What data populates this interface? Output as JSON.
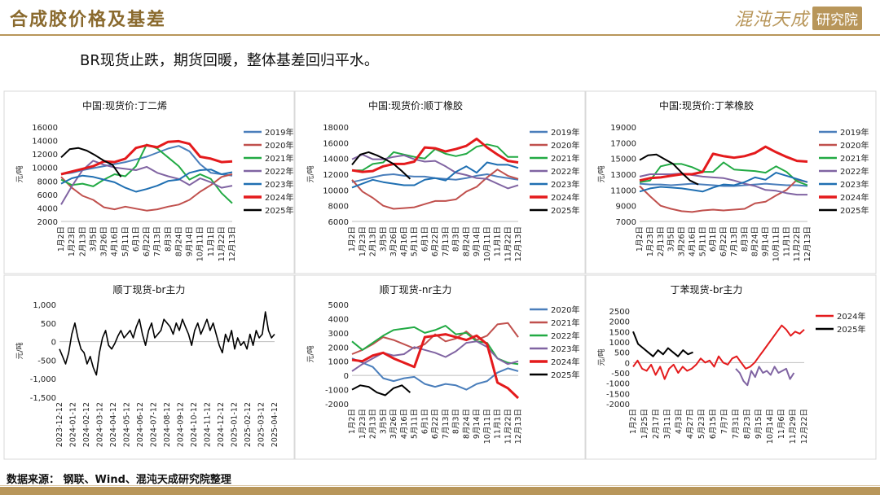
{
  "header": {
    "title": "合成胶价格及基差"
  },
  "logo": {
    "text": "混沌天成",
    "box": "研究院"
  },
  "subtitle": "BR现货止跌，期货回暖，整体基差回归平水。",
  "footer": {
    "source": "数据来源： 钢联、Wind、混沌天成研究院整理"
  },
  "colors": {
    "y2019": "#4a7ebb",
    "y2020": "#c0504d",
    "y2021": "#22aa44",
    "y2022": "#8064a2",
    "y2023": "#1f6fb2",
    "y2024": "#e41a1c",
    "y2025": "#000000",
    "accent": "#b8965a"
  },
  "chart_data": [
    {
      "type": "line",
      "title": "中国:现货价:丁二烯",
      "ylabel": "元/吨",
      "ylim": [
        2000,
        16000
      ],
      "yticks": [
        "16000",
        "14000",
        "12000",
        "10000",
        "8000",
        "6000",
        "4000",
        "2000"
      ],
      "xticks": [
        "1月2日",
        "1月23日",
        "2月13日",
        "3月5日",
        "3月26日",
        "4月16日",
        "5月11日",
        "6月1日",
        "6月22日",
        "7月13日",
        "8月3日",
        "8月24日",
        "9月14日",
        "10月11日",
        "11月1日",
        "11月22日",
        "12月13日"
      ],
      "series": [
        {
          "name": "2019年",
          "color": "#4a7ebb",
          "width": 2,
          "values": [
            9000,
            9200,
            9600,
            9900,
            10200,
            10500,
            10800,
            11200,
            11600,
            12200,
            12800,
            13200,
            12400,
            10500,
            9200,
            9000,
            8800
          ]
        },
        {
          "name": "2020年",
          "color": "#c0504d",
          "width": 2,
          "values": [
            8600,
            7000,
            5800,
            5200,
            4100,
            3800,
            4200,
            3900,
            3600,
            3800,
            4200,
            4500,
            5200,
            6400,
            7400,
            8600,
            9000
          ]
        },
        {
          "name": "2021年",
          "color": "#22aa44",
          "width": 2,
          "values": [
            8200,
            7400,
            7600,
            7200,
            8200,
            9000,
            8700,
            10200,
            13400,
            12800,
            11500,
            10200,
            8200,
            9000,
            8300,
            6200,
            4700
          ]
        },
        {
          "name": "2022年",
          "color": "#8064a2",
          "width": 2,
          "values": [
            4500,
            7200,
            9600,
            11000,
            10400,
            10000,
            9800,
            9600,
            10100,
            9200,
            8700,
            8300,
            7400,
            8400,
            7800,
            7000,
            7300
          ]
        },
        {
          "name": "2023年",
          "color": "#1f6fb2",
          "width": 2,
          "values": [
            7600,
            8400,
            8800,
            8600,
            8200,
            7800,
            7000,
            6400,
            6800,
            7300,
            8000,
            8200,
            9200,
            9600,
            9700,
            9000,
            9300
          ]
        },
        {
          "name": "2024年",
          "color": "#e41a1c",
          "width": 3,
          "values": [
            9000,
            9400,
            9800,
            10200,
            10900,
            10800,
            11300,
            12900,
            13300,
            13000,
            13800,
            13900,
            13500,
            11600,
            11300,
            10800,
            10900
          ]
        },
        {
          "name": "2025年",
          "color": "#000000",
          "width": 2,
          "values": [
            11500,
            12700,
            12900,
            12500,
            11800,
            11000,
            10400,
            8600
          ]
        }
      ]
    },
    {
      "type": "line",
      "title": "中国:现货价:顺丁橡胶",
      "ylabel": "元/吨",
      "ylim": [
        6000,
        18000
      ],
      "yticks": [
        "18000",
        "16000",
        "14000",
        "12000",
        "10000",
        "8000",
        "6000"
      ],
      "xticks": [
        "1月2日",
        "1月23日",
        "2月13日",
        "3月5日",
        "3月26日",
        "4月16日",
        "5月11日",
        "6月1日",
        "6月22日",
        "7月13日",
        "8月3日",
        "8月24日",
        "9月14日",
        "10月11日",
        "11月1日",
        "11月22日",
        "12月13日"
      ],
      "series": [
        {
          "name": "2019年",
          "color": "#4a7ebb",
          "width": 2,
          "values": [
            11000,
            11300,
            11600,
            11900,
            12000,
            11800,
            11700,
            11700,
            11500,
            11400,
            11300,
            11500,
            11800,
            12000,
            11700,
            11500,
            11300
          ]
        },
        {
          "name": "2020年",
          "color": "#c0504d",
          "width": 2,
          "values": [
            11300,
            9800,
            9000,
            8000,
            7600,
            7700,
            7800,
            8200,
            8600,
            8600,
            8800,
            9800,
            10400,
            11600,
            12600,
            11800,
            11400
          ]
        },
        {
          "name": "2021年",
          "color": "#22aa44",
          "width": 2,
          "values": [
            12500,
            12500,
            13300,
            13500,
            14800,
            14500,
            14200,
            14000,
            15200,
            14600,
            14300,
            14600,
            15500,
            15800,
            15500,
            14200,
            14200
          ]
        },
        {
          "name": "2022年",
          "color": "#8064a2",
          "width": 2,
          "values": [
            13900,
            14500,
            13900,
            13900,
            14200,
            14400,
            13900,
            13600,
            13700,
            13000,
            12200,
            11900,
            11500,
            11400,
            10800,
            10200,
            10600
          ]
        },
        {
          "name": "2023年",
          "color": "#1f6fb2",
          "width": 2,
          "values": [
            10300,
            10800,
            11300,
            11000,
            10800,
            10600,
            10600,
            11300,
            11500,
            11200,
            12300,
            13000,
            12200,
            13500,
            13200,
            13200,
            12800
          ]
        },
        {
          "name": "2024年",
          "color": "#e41a1c",
          "width": 3,
          "values": [
            12500,
            12300,
            12400,
            13000,
            13300,
            13300,
            13600,
            15400,
            15300,
            14900,
            15200,
            15600,
            16500,
            15400,
            14500,
            13700,
            13500
          ]
        },
        {
          "name": "2025年",
          "color": "#000000",
          "width": 2,
          "values": [
            13200,
            14500,
            14800,
            14400,
            13900,
            13300,
            12400,
            11400
          ]
        }
      ]
    },
    {
      "type": "line",
      "title": "中国:现货价:丁苯橡胶",
      "ylabel": "元/吨",
      "ylim": [
        7000,
        19000
      ],
      "yticks": [
        "19000",
        "17000",
        "15000",
        "13000",
        "11000",
        "9000",
        "7000"
      ],
      "xticks": [
        "1月2日",
        "1月23日",
        "2月13日",
        "3月5日",
        "3月26日",
        "4月16日",
        "5月11日",
        "6月1日",
        "6月22日",
        "7月13日",
        "8月3日",
        "8月24日",
        "9月14日",
        "10月11日",
        "11月1日",
        "11月22日",
        "12月13日"
      ],
      "series": [
        {
          "name": "2019年",
          "color": "#4a7ebb",
          "width": 2,
          "values": [
            11800,
            11700,
            11700,
            11600,
            11700,
            11800,
            11700,
            11600,
            11500,
            11500,
            11600,
            11700,
            11800,
            11700,
            11600,
            11600,
            11500
          ]
        },
        {
          "name": "2020年",
          "color": "#c0504d",
          "width": 2,
          "values": [
            11500,
            10200,
            9000,
            8600,
            8300,
            8200,
            8400,
            8500,
            8400,
            8500,
            8600,
            9300,
            9500,
            10300,
            11000,
            12300,
            12000
          ]
        },
        {
          "name": "2021年",
          "color": "#22aa44",
          "width": 2,
          "values": [
            12000,
            12200,
            14000,
            14300,
            14300,
            13900,
            13300,
            13300,
            14500,
            13600,
            13500,
            13400,
            13200,
            14000,
            13300,
            12100,
            11600
          ]
        },
        {
          "name": "2022年",
          "color": "#8064a2",
          "width": 2,
          "values": [
            12700,
            13000,
            13000,
            13000,
            13100,
            12900,
            12700,
            12600,
            12500,
            12200,
            11800,
            11500,
            11000,
            10900,
            10600,
            10400,
            10400
          ]
        },
        {
          "name": "2023年",
          "color": "#1f6fb2",
          "width": 2,
          "values": [
            10800,
            11200,
            11400,
            11300,
            11200,
            11000,
            10800,
            11300,
            11700,
            11600,
            12000,
            12600,
            12300,
            13200,
            12800,
            12400,
            12000
          ]
        },
        {
          "name": "2024年",
          "color": "#e41a1c",
          "width": 3,
          "values": [
            12200,
            12500,
            12600,
            12800,
            13000,
            13000,
            13300,
            15600,
            15300,
            15100,
            15300,
            15700,
            16500,
            15800,
            15200,
            14700,
            14600
          ]
        },
        {
          "name": "2025年",
          "color": "#000000",
          "width": 2,
          "values": [
            14800,
            15400,
            15500,
            14900,
            14300,
            13200,
            12200,
            11700
          ]
        }
      ]
    },
    {
      "type": "line",
      "title": "顺丁现货-br主力",
      "ylabel": "元/吨",
      "ylim": [
        -1500,
        1000
      ],
      "yticks": [
        "1,000",
        "500",
        "0",
        "-500",
        "-1,000",
        "-1,500"
      ],
      "xticks": [
        "2023-12-12",
        "2024-01-12",
        "2024-02-12",
        "2024-03-12",
        "2024-04-12",
        "2024-05-12",
        "2024-06-12",
        "2024-07-12",
        "2024-08-12",
        "2024-09-12",
        "2024-10-12",
        "2024-11-12",
        "2024-12-12",
        "2025-01-12",
        "2025-02-12",
        "2025-03-12",
        "2025-04-12"
      ],
      "series": [
        {
          "name": "",
          "color": "#000000",
          "width": 1.6,
          "values": [
            -200,
            -400,
            -600,
            -300,
            200,
            500,
            100,
            -200,
            -300,
            -600,
            -400,
            -700,
            -900,
            -300,
            100,
            300,
            -100,
            -200,
            -50,
            150,
            300,
            100,
            200,
            300,
            100,
            400,
            600,
            200,
            -100,
            300,
            500,
            100,
            200,
            300,
            600,
            500,
            400,
            200,
            500,
            300,
            600,
            400,
            200,
            -100,
            300,
            500,
            200,
            400,
            600,
            300,
            500,
            200,
            -100,
            -300,
            200,
            0,
            300,
            -200,
            100,
            -100,
            0,
            -200,
            200,
            -100,
            300,
            100,
            200,
            800,
            300,
            100,
            200
          ]
        }
      ]
    },
    {
      "type": "line",
      "title": "顺丁现货-nr主力",
      "ylabel": "元/吨",
      "ylim": [
        -2000,
        5000
      ],
      "yticks": [
        "5000",
        "4000",
        "3000",
        "2000",
        "1000",
        "0",
        "-1000",
        "-2000"
      ],
      "xticks": [
        "1月2日",
        "1月23日",
        "2月13日",
        "3月5日",
        "3月26日",
        "4月16日",
        "5月11日",
        "6月1日",
        "6月22日",
        "7月13日",
        "8月3日",
        "8月24日",
        "9月14日",
        "10月11日",
        "11月1日",
        "11月22日",
        "12月13日"
      ],
      "series": [
        {
          "name": "2020年",
          "color": "#4a7ebb",
          "width": 2,
          "values": [
            1200,
            900,
            600,
            -200,
            -400,
            -200,
            -100,
            -600,
            -800,
            -600,
            -700,
            -1000,
            -600,
            -400,
            200,
            500,
            300
          ]
        },
        {
          "name": "2021年",
          "color": "#c0504d",
          "width": 2,
          "values": [
            1500,
            1800,
            2200,
            2700,
            2500,
            2200,
            1900,
            2200,
            2900,
            2400,
            2600,
            3100,
            2500,
            2800,
            3600,
            3700,
            2700
          ]
        },
        {
          "name": "2022年",
          "color": "#22aa44",
          "width": 2,
          "values": [
            2400,
            1800,
            2300,
            2800,
            3200,
            3300,
            3400,
            3000,
            3200,
            3500,
            2900,
            3000,
            2400,
            2300,
            1200,
            900,
            800
          ]
        },
        {
          "name": "2023年",
          "color": "#8064a2",
          "width": 2,
          "values": [
            300,
            800,
            1200,
            1600,
            1400,
            1500,
            2000,
            1800,
            1600,
            1300,
            1700,
            2300,
            2400,
            2000,
            1200,
            800,
            1000
          ]
        },
        {
          "name": "2024年",
          "color": "#e41a1c",
          "width": 3,
          "values": [
            1100,
            1000,
            1400,
            1600,
            1200,
            900,
            600,
            2700,
            2800,
            2900,
            2700,
            2500,
            2800,
            2200,
            -500,
            -900,
            -1600
          ]
        },
        {
          "name": "2025年",
          "color": "#000000",
          "width": 2,
          "values": [
            -1000,
            -700,
            -800,
            -1200,
            -1400,
            -900,
            -700,
            -1200
          ]
        }
      ]
    },
    {
      "type": "line",
      "title": "丁苯现货-br主力",
      "ylabel": "元/吨",
      "ylim": [
        -2000,
        2500
      ],
      "yticks": [
        "2500",
        "2000",
        "1500",
        "1000",
        "500",
        "0",
        "-500",
        "-1000",
        "-1500",
        "-2000"
      ],
      "xticks": [
        "1月2日",
        "1月25日",
        "2月17日",
        "3月11日",
        "4月3日",
        "4月27日",
        "5月23日",
        "6月15日",
        "7月7日",
        "7月31日",
        "8月23日",
        "9月15日",
        "10月14日",
        "11月6日",
        "11月29日",
        "12月22日"
      ],
      "series": [
        {
          "name": "2024年",
          "color": "#e41a1c",
          "width": 2,
          "values": [
            -200,
            100,
            -300,
            -400,
            -100,
            -600,
            -200,
            -800,
            -300,
            -100,
            -500,
            -200,
            -400,
            -300,
            -100,
            200,
            0,
            100,
            -200,
            300,
            0,
            -100,
            200,
            300,
            0,
            -300,
            -200,
            0,
            300,
            600,
            900,
            1200,
            1500,
            1800,
            1600,
            1300,
            1500,
            1400,
            1600
          ]
        },
        {
          "name": "2025年",
          "color": "#000000",
          "width": 2,
          "values": [
            1500,
            900,
            700,
            500,
            300,
            600,
            400,
            700,
            500,
            300,
            600,
            400,
            500
          ]
        },
        {
          "name": "",
          "color": "#8064a2",
          "width": 2,
          "values": [
            -300,
            -500,
            -900,
            -1100,
            -400,
            -700,
            -200,
            -500,
            -400,
            -600,
            -200,
            -500,
            -400,
            -300,
            -800,
            -500
          ]
        }
      ]
    }
  ]
}
